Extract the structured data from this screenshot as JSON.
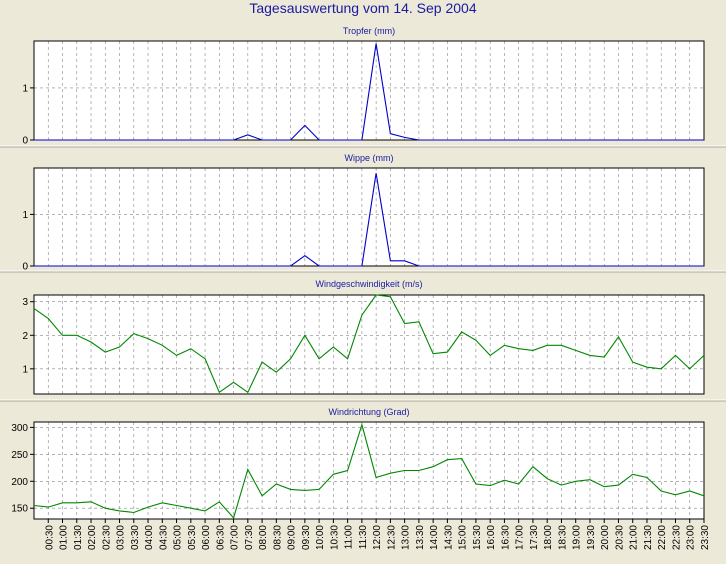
{
  "title": "Tagesauswertung vom 14. Sep 2004",
  "colors": {
    "background": "#ece9d8",
    "plot_background": "#ffffff",
    "title": "#1a1aa0",
    "rain": "#0000cc",
    "wind": "#008800",
    "grid": "#888888"
  },
  "x_labels": [
    "00:30",
    "01:00",
    "01:30",
    "02:00",
    "02:30",
    "03:00",
    "03:30",
    "04:00",
    "04:30",
    "05:00",
    "05:30",
    "06:00",
    "06:30",
    "07:00",
    "07:30",
    "08:00",
    "08:30",
    "09:00",
    "09:30",
    "10:00",
    "10:30",
    "11:00",
    "11:30",
    "12:00",
    "12:30",
    "13:00",
    "13:30",
    "14:00",
    "14:30",
    "15:00",
    "15:30",
    "16:00",
    "16:30",
    "17:00",
    "17:30",
    "18:00",
    "18:30",
    "19:00",
    "19:30",
    "20:00",
    "20:30",
    "21:00",
    "21:30",
    "22:00",
    "22:30",
    "23:00",
    "23:30"
  ],
  "chart_data": [
    {
      "type": "line",
      "title": "Tropfer (mm)",
      "color": "#0000cc",
      "grid": true,
      "ylim": [
        0,
        1.9
      ],
      "yticks": [
        0,
        1
      ],
      "x": [
        "00:00",
        "00:30",
        "01:00",
        "01:30",
        "02:00",
        "02:30",
        "03:00",
        "03:30",
        "04:00",
        "04:30",
        "05:00",
        "05:30",
        "06:00",
        "06:30",
        "07:00",
        "07:30",
        "08:00",
        "08:30",
        "09:00",
        "09:30",
        "10:00",
        "10:30",
        "11:00",
        "11:30",
        "12:00",
        "12:30",
        "13:00",
        "13:30",
        "14:00",
        "14:30",
        "15:00",
        "15:30",
        "16:00",
        "16:30",
        "17:00",
        "17:30",
        "18:00",
        "18:30",
        "19:00",
        "19:30",
        "20:00",
        "20:30",
        "21:00",
        "21:30",
        "22:00",
        "22:30",
        "23:00",
        "23:30"
      ],
      "values": [
        0,
        0,
        0,
        0,
        0,
        0,
        0,
        0,
        0,
        0,
        0,
        0,
        0,
        0,
        0,
        0.1,
        0,
        0,
        0,
        0.28,
        0,
        0,
        0,
        0,
        1.85,
        0.12,
        0.05,
        0,
        0,
        0,
        0,
        0,
        0,
        0,
        0,
        0,
        0,
        0,
        0,
        0,
        0,
        0,
        0,
        0,
        0,
        0,
        0,
        0
      ]
    },
    {
      "type": "line",
      "title": "Wippe (mm)",
      "color": "#0000cc",
      "grid": true,
      "ylim": [
        0,
        1.9
      ],
      "yticks": [
        0,
        1
      ],
      "x": [
        "00:00",
        "00:30",
        "01:00",
        "01:30",
        "02:00",
        "02:30",
        "03:00",
        "03:30",
        "04:00",
        "04:30",
        "05:00",
        "05:30",
        "06:00",
        "06:30",
        "07:00",
        "07:30",
        "08:00",
        "08:30",
        "09:00",
        "09:30",
        "10:00",
        "10:30",
        "11:00",
        "11:30",
        "12:00",
        "12:30",
        "13:00",
        "13:30",
        "14:00",
        "14:30",
        "15:00",
        "15:30",
        "16:00",
        "16:30",
        "17:00",
        "17:30",
        "18:00",
        "18:30",
        "19:00",
        "19:30",
        "20:00",
        "20:30",
        "21:00",
        "21:30",
        "22:00",
        "22:30",
        "23:00",
        "23:30"
      ],
      "values": [
        0,
        0,
        0,
        0,
        0,
        0,
        0,
        0,
        0,
        0,
        0,
        0,
        0,
        0,
        0,
        0,
        0,
        0,
        0,
        0.2,
        0,
        0,
        0,
        0,
        1.8,
        0.1,
        0.1,
        0,
        0,
        0,
        0,
        0,
        0,
        0,
        0,
        0,
        0,
        0,
        0,
        0,
        0,
        0,
        0,
        0,
        0,
        0,
        0,
        0
      ]
    },
    {
      "type": "line",
      "title": "Windgeschwindigkeit (m/s)",
      "color": "#008800",
      "grid": true,
      "ylim": [
        0.25,
        3.2
      ],
      "yticks": [
        1,
        2,
        3
      ],
      "x": [
        "00:00",
        "00:30",
        "01:00",
        "01:30",
        "02:00",
        "02:30",
        "03:00",
        "03:30",
        "04:00",
        "04:30",
        "05:00",
        "05:30",
        "06:00",
        "06:30",
        "07:00",
        "07:30",
        "08:00",
        "08:30",
        "09:00",
        "09:30",
        "10:00",
        "10:30",
        "11:00",
        "11:30",
        "12:00",
        "12:30",
        "13:00",
        "13:30",
        "14:00",
        "14:30",
        "15:00",
        "15:30",
        "16:00",
        "16:30",
        "17:00",
        "17:30",
        "18:00",
        "18:30",
        "19:00",
        "19:30",
        "20:00",
        "20:30",
        "21:00",
        "21:30",
        "22:00",
        "22:30",
        "23:00",
        "23:30"
      ],
      "values": [
        2.8,
        2.5,
        2.0,
        2.0,
        1.8,
        1.5,
        1.65,
        2.05,
        1.9,
        1.7,
        1.4,
        1.6,
        1.3,
        0.3,
        0.6,
        0.3,
        1.2,
        0.9,
        1.3,
        2.0,
        1.3,
        1.65,
        1.3,
        2.6,
        3.2,
        3.15,
        2.35,
        2.4,
        1.45,
        1.5,
        2.1,
        1.85,
        1.4,
        1.7,
        1.6,
        1.55,
        1.7,
        1.7,
        1.55,
        1.4,
        1.35,
        1.95,
        1.2,
        1.05,
        1.0,
        1.4,
        1.0,
        1.4
      ]
    },
    {
      "type": "line",
      "title": "Windrichtung (Grad)",
      "color": "#008800",
      "grid": true,
      "ylim": [
        130,
        310
      ],
      "yticks": [
        150,
        200,
        250,
        300
      ],
      "x": [
        "00:00",
        "00:30",
        "01:00",
        "01:30",
        "02:00",
        "02:30",
        "03:00",
        "03:30",
        "04:00",
        "04:30",
        "05:00",
        "05:30",
        "06:00",
        "06:30",
        "07:00",
        "07:30",
        "08:00",
        "08:30",
        "09:00",
        "09:30",
        "10:00",
        "10:30",
        "11:00",
        "11:30",
        "12:00",
        "12:30",
        "13:00",
        "13:30",
        "14:00",
        "14:30",
        "15:00",
        "15:30",
        "16:00",
        "16:30",
        "17:00",
        "17:30",
        "18:00",
        "18:30",
        "19:00",
        "19:30",
        "20:00",
        "20:30",
        "21:00",
        "21:30",
        "22:00",
        "22:30",
        "23:00",
        "23:30"
      ],
      "values": [
        155,
        152,
        160,
        160,
        162,
        150,
        145,
        142,
        152,
        160,
        155,
        150,
        145,
        162,
        132,
        222,
        173,
        195,
        185,
        183,
        185,
        213,
        220,
        305,
        207,
        215,
        220,
        220,
        227,
        240,
        242,
        195,
        192,
        202,
        195,
        227,
        205,
        193,
        200,
        203,
        190,
        193,
        213,
        207,
        182,
        175,
        182,
        173
      ]
    }
  ]
}
